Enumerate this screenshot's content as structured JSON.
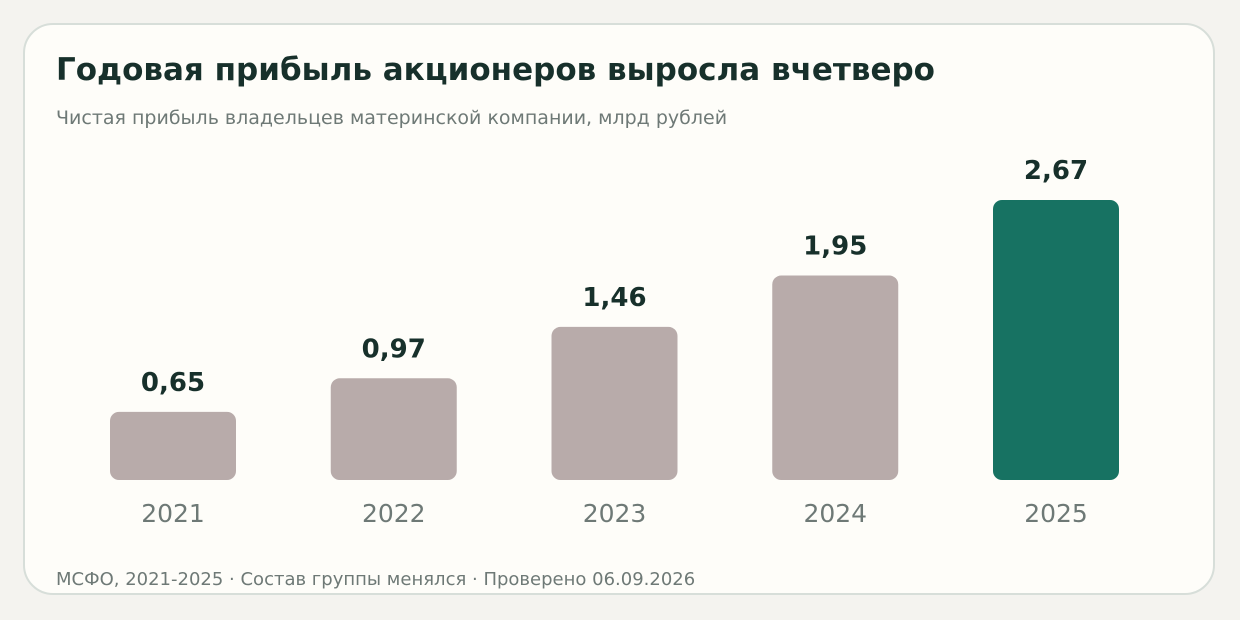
{
  "title": "Годовая прибыль акционеров выросла вчетверо",
  "subtitle": "Чистая прибыль владельцев материнской компании, млрд рублей",
  "footer": "МСФО, 2021-2025 · Состав группы менялся · Проверено 06.09.2026",
  "colors": {
    "bar": "#b8abaa",
    "highlight": "#177262",
    "value_label": "#17302b",
    "category_label": "#6e7976"
  },
  "chart_data": {
    "type": "bar",
    "categories": [
      "2021",
      "2022",
      "2023",
      "2024",
      "2025"
    ],
    "values": [
      0.65,
      0.97,
      1.46,
      1.95,
      2.67
    ],
    "value_labels": [
      "0,65",
      "0,97",
      "1,46",
      "1,95",
      "2,67"
    ],
    "highlight_index": 4,
    "title": "Годовая прибыль акционеров выросла вчетверо",
    "subtitle": "Чистая прибыль владельцев материнской компании, млрд рублей",
    "xlabel": "",
    "ylabel": "",
    "ylim": [
      0,
      2.67
    ],
    "grid": false,
    "legend": "none"
  }
}
